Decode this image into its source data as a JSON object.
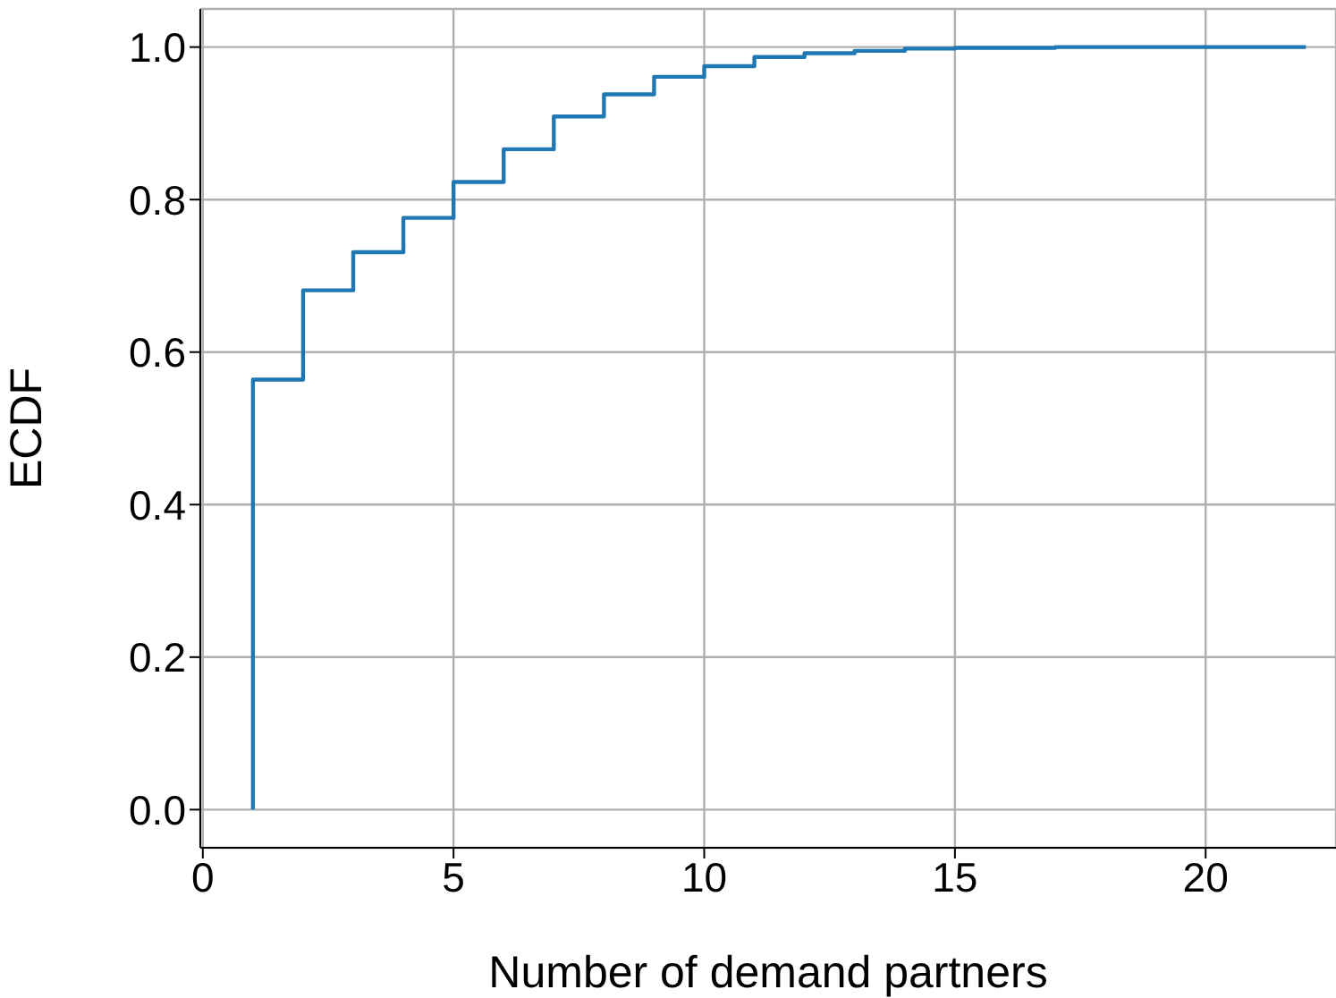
{
  "chart_data": {
    "type": "step",
    "xlabel": "Number of demand partners",
    "ylabel": "ECDF",
    "x": [
      1,
      1,
      2,
      3,
      4,
      5,
      6,
      7,
      8,
      9,
      10,
      11,
      12,
      13,
      14,
      15,
      16,
      17,
      18,
      19,
      20,
      21,
      22
    ],
    "series": [
      {
        "color": "#1f77b4",
        "values": [
          0,
          0.564,
          0.681,
          0.731,
          0.776,
          0.823,
          0.866,
          0.909,
          0.938,
          0.961,
          0.975,
          0.987,
          0.992,
          0.995,
          0.998,
          0.999,
          0.999,
          1.0,
          1.0,
          1.0,
          1.0,
          1.0,
          1.0
        ]
      }
    ],
    "xlim": [
      -0.05,
      22.6
    ],
    "xticks": [
      0,
      5,
      10,
      15,
      20
    ],
    "ylim": [
      -0.05,
      1.05
    ],
    "yticks": [
      {
        "value": 0,
        "label": "0.0"
      },
      {
        "value": 0.2,
        "label": "0.2"
      },
      {
        "value": 0.4,
        "label": "0.4"
      },
      {
        "value": 0.6,
        "label": "0.6"
      },
      {
        "value": 0.8,
        "label": "0.8"
      },
      {
        "value": 1,
        "label": "1.0"
      }
    ],
    "grid": true,
    "legend": false,
    "marker": "none",
    "line_style": "solid"
  }
}
